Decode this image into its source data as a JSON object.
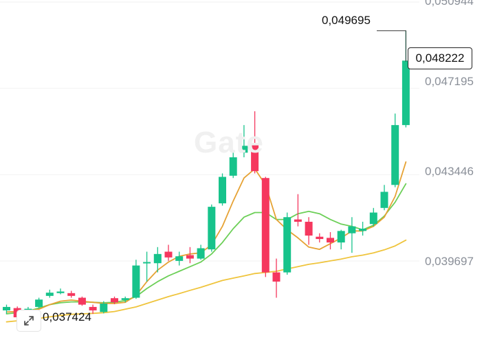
{
  "watermark": "Gate",
  "price_axis": {
    "labels": [
      "0,050944",
      "0,047195",
      "0,043446",
      "0,039697"
    ],
    "values": [
      0.050944,
      0.047195,
      0.043446,
      0.039697
    ]
  },
  "callouts": {
    "high_label": "0,049695",
    "low_label": "0,037424",
    "current_price": "0,048222"
  },
  "controls": {
    "expand_icon": "expand-arrows-icon"
  },
  "colors": {
    "up": "#17c38b",
    "down": "#f5375e",
    "ma_fast": "#e6a234",
    "ma_mid": "#6ccf57",
    "ma_slow": "#efc43c",
    "grid": "#f2f2f2"
  },
  "chart_data": {
    "type": "candlestick",
    "y_axis_ticks": [
      0.050944,
      0.047195,
      0.043446,
      0.039697
    ],
    "ylim": [
      0.0365,
      0.0512
    ],
    "candles": [
      {
        "o": 0.03755,
        "c": 0.0377,
        "h": 0.0378,
        "l": 0.0374
      },
      {
        "o": 0.03765,
        "c": 0.03725,
        "h": 0.03772,
        "l": 0.03718
      },
      {
        "o": 0.03732,
        "c": 0.03762,
        "h": 0.0377,
        "l": 0.03725
      },
      {
        "o": 0.0377,
        "c": 0.03802,
        "h": 0.0381,
        "l": 0.03765
      },
      {
        "o": 0.03818,
        "c": 0.03832,
        "h": 0.03845,
        "l": 0.0381
      },
      {
        "o": 0.0383,
        "c": 0.03837,
        "h": 0.0385,
        "l": 0.03825
      },
      {
        "o": 0.0383,
        "c": 0.03818,
        "h": 0.0384,
        "l": 0.0381
      },
      {
        "o": 0.0381,
        "c": 0.0378,
        "h": 0.03815,
        "l": 0.03775
      },
      {
        "o": 0.0377,
        "c": 0.03755,
        "h": 0.0378,
        "l": 0.0374
      },
      {
        "o": 0.03748,
        "c": 0.03785,
        "h": 0.03795,
        "l": 0.03742
      },
      {
        "o": 0.03808,
        "c": 0.0379,
        "h": 0.03815,
        "l": 0.03782
      },
      {
        "o": 0.038,
        "c": 0.03808,
        "h": 0.03815,
        "l": 0.0379
      },
      {
        "o": 0.0381,
        "c": 0.0395,
        "h": 0.03975,
        "l": 0.03805
      },
      {
        "o": 0.0396,
        "c": 0.03965,
        "h": 0.0401,
        "l": 0.0388
      },
      {
        "o": 0.0396,
        "c": 0.04,
        "h": 0.0403,
        "l": 0.0392
      },
      {
        "o": 0.0401,
        "c": 0.03985,
        "h": 0.0404,
        "l": 0.0397
      },
      {
        "o": 0.0397,
        "c": 0.0399,
        "h": 0.0401,
        "l": 0.0395
      },
      {
        "o": 0.03995,
        "c": 0.0398,
        "h": 0.0403,
        "l": 0.0396
      },
      {
        "o": 0.0398,
        "c": 0.04025,
        "h": 0.0404,
        "l": 0.03975
      },
      {
        "o": 0.0402,
        "c": 0.04205,
        "h": 0.04215,
        "l": 0.0401
      },
      {
        "o": 0.0422,
        "c": 0.04335,
        "h": 0.0435,
        "l": 0.0421
      },
      {
        "o": 0.0434,
        "c": 0.0442,
        "h": 0.0444,
        "l": 0.0433
      },
      {
        "o": 0.0444,
        "c": 0.0447,
        "h": 0.0456,
        "l": 0.0442
      },
      {
        "o": 0.0448,
        "c": 0.0436,
        "h": 0.0462,
        "l": 0.0435
      },
      {
        "o": 0.0433,
        "c": 0.0392,
        "h": 0.04335,
        "l": 0.039
      },
      {
        "o": 0.0392,
        "c": 0.0388,
        "h": 0.0398,
        "l": 0.0381
      },
      {
        "o": 0.0392,
        "c": 0.0416,
        "h": 0.0418,
        "l": 0.0391
      },
      {
        "o": 0.0415,
        "c": 0.0414,
        "h": 0.0426,
        "l": 0.0412
      },
      {
        "o": 0.0414,
        "c": 0.0408,
        "h": 0.0416,
        "l": 0.0404
      },
      {
        "o": 0.04075,
        "c": 0.04065,
        "h": 0.0409,
        "l": 0.0405
      },
      {
        "o": 0.0407,
        "c": 0.0405,
        "h": 0.04095,
        "l": 0.0402
      },
      {
        "o": 0.0405,
        "c": 0.041,
        "h": 0.04105,
        "l": 0.0402
      },
      {
        "o": 0.0409,
        "c": 0.0412,
        "h": 0.0416,
        "l": 0.04005
      },
      {
        "o": 0.041,
        "c": 0.0411,
        "h": 0.0414,
        "l": 0.0408
      },
      {
        "o": 0.0413,
        "c": 0.0418,
        "h": 0.042,
        "l": 0.0412
      },
      {
        "o": 0.042,
        "c": 0.0427,
        "h": 0.043,
        "l": 0.0419
      },
      {
        "o": 0.043,
        "c": 0.0456,
        "h": 0.0461,
        "l": 0.0429
      },
      {
        "o": 0.0456,
        "c": 0.0484,
        "h": 0.0497,
        "l": 0.0455
      }
    ],
    "ma_fast": [
      0.03748,
      0.0375,
      0.03752,
      0.0376,
      0.0378,
      0.03795,
      0.038,
      0.03795,
      0.0379,
      0.03785,
      0.03785,
      0.0379,
      0.0382,
      0.0388,
      0.0393,
      0.03965,
      0.0399,
      0.04,
      0.04005,
      0.0404,
      0.0412,
      0.0423,
      0.0433,
      0.0437,
      0.043,
      0.0415,
      0.04105,
      0.0407,
      0.0403,
      0.0402,
      0.04045,
      0.0407,
      0.041,
      0.041,
      0.0412,
      0.0416,
      0.0425,
      0.044
    ],
    "ma_mid": [
      0.0374,
      0.03745,
      0.03752,
      0.03765,
      0.0378,
      0.03788,
      0.03792,
      0.03792,
      0.0379,
      0.03788,
      0.0379,
      0.03798,
      0.03815,
      0.0385,
      0.0388,
      0.03905,
      0.03925,
      0.03945,
      0.03965,
      0.04,
      0.0405,
      0.0411,
      0.0416,
      0.0418,
      0.0418,
      0.0415,
      0.0415,
      0.04175,
      0.04185,
      0.04175,
      0.0415,
      0.0413,
      0.0412,
      0.04105,
      0.04125,
      0.04165,
      0.04225,
      0.04305
    ],
    "ma_slow": [
      0.03705,
      0.0371,
      0.03715,
      0.0372,
      0.03727,
      0.03733,
      0.03738,
      0.0374,
      0.03742,
      0.03745,
      0.0375,
      0.0376,
      0.0377,
      0.03785,
      0.038,
      0.03815,
      0.03828,
      0.03842,
      0.03855,
      0.0387,
      0.03885,
      0.03895,
      0.03905,
      0.03915,
      0.0392,
      0.03925,
      0.03935,
      0.03945,
      0.03955,
      0.03962,
      0.0397,
      0.03978,
      0.03988,
      0.03995,
      0.04005,
      0.04018,
      0.04035,
      0.0406
    ]
  }
}
